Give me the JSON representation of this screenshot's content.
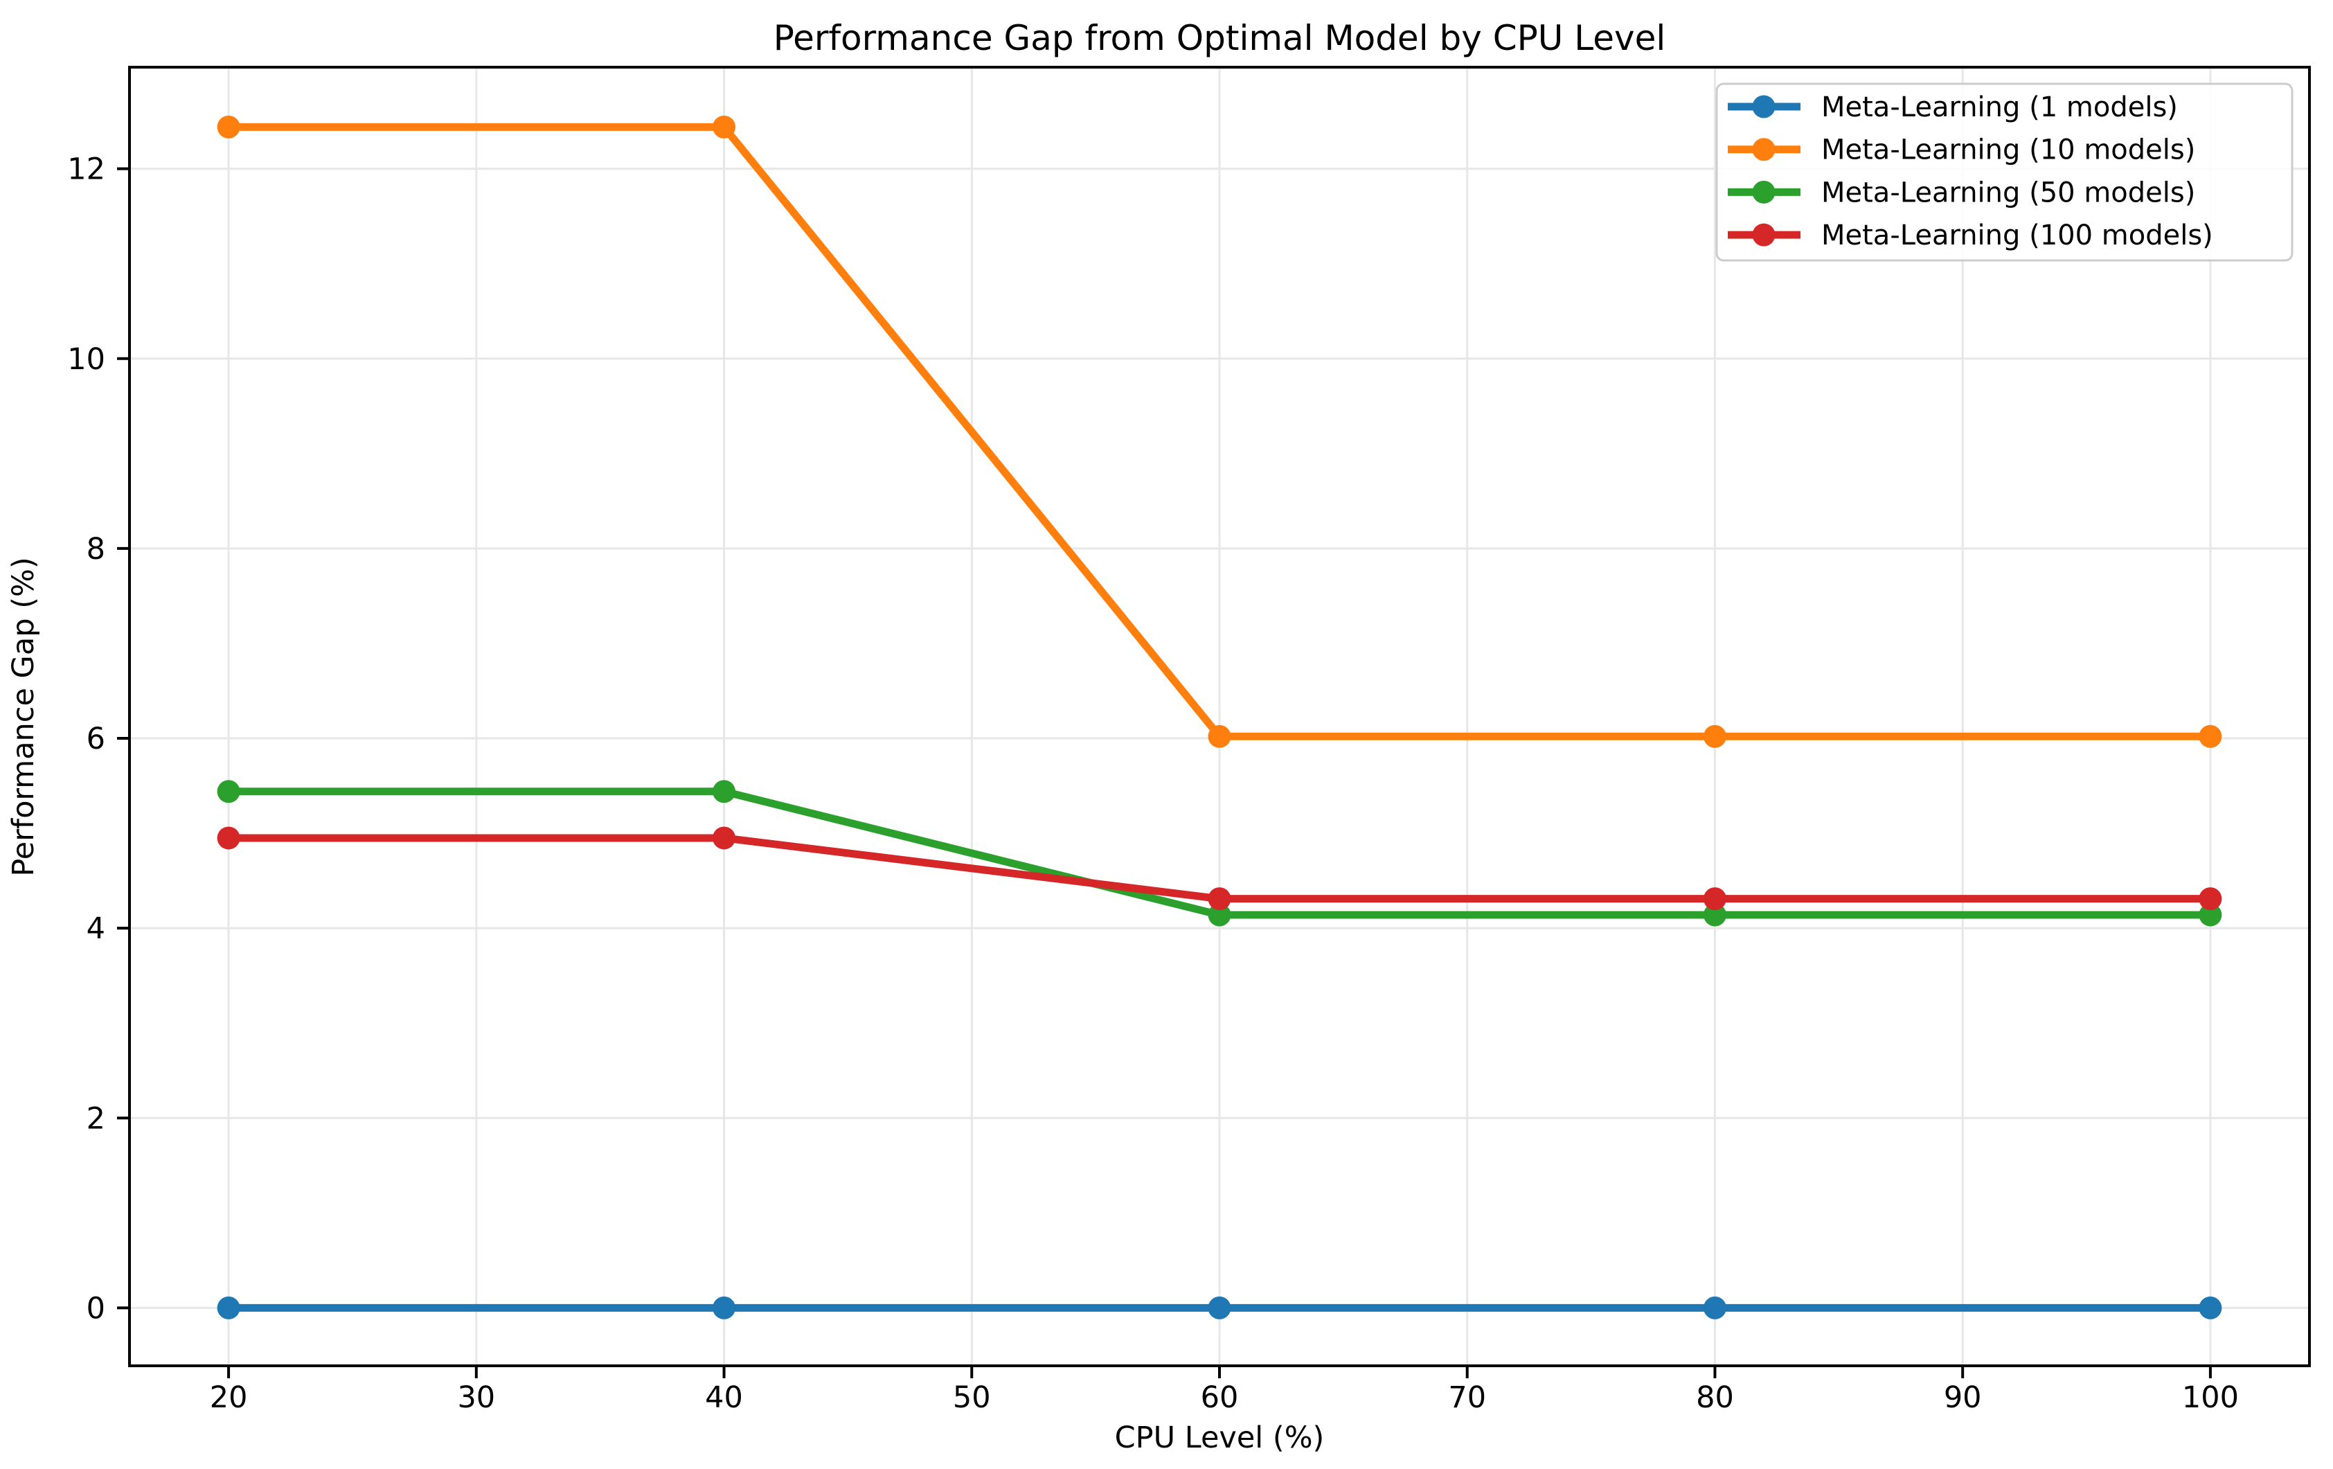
{
  "figure": {
    "background": "#ffffff"
  },
  "chart_data": {
    "type": "line",
    "title": "Performance Gap from Optimal Model by CPU Level",
    "xlabel": "CPU Level (%)",
    "ylabel": "Performance Gap (%)",
    "x": [
      20,
      40,
      60,
      80,
      100
    ],
    "series": [
      {
        "name": "Meta-Learning (1 models)",
        "color": "#1f77b4",
        "values": [
          0.0,
          0.0,
          0.0,
          0.0,
          0.0
        ]
      },
      {
        "name": "Meta-Learning (10 models)",
        "color": "#ff7f0e",
        "values": [
          12.44,
          12.44,
          6.02,
          6.02,
          6.02
        ]
      },
      {
        "name": "Meta-Learning (50 models)",
        "color": "#2ca02c",
        "values": [
          5.44,
          5.44,
          4.14,
          4.14,
          4.14
        ]
      },
      {
        "name": "Meta-Learning (100 models)",
        "color": "#d62728",
        "values": [
          4.95,
          4.95,
          4.31,
          4.31,
          4.31
        ]
      }
    ],
    "xticks": [
      20,
      30,
      40,
      50,
      60,
      70,
      80,
      90,
      100
    ],
    "yticks": [
      0,
      2,
      4,
      6,
      8,
      10,
      12
    ],
    "xlim": [
      16,
      104
    ],
    "ylim": [
      -0.61,
      13.07
    ],
    "grid": true,
    "legend": {
      "position": "upper right",
      "frame": true
    }
  },
  "style": {
    "grid_color": "#e7e7e7",
    "spine_color": "#000000",
    "tick_color": "#000000",
    "legend_border_color": "#cccccc",
    "legend_background": "#ffffff"
  }
}
